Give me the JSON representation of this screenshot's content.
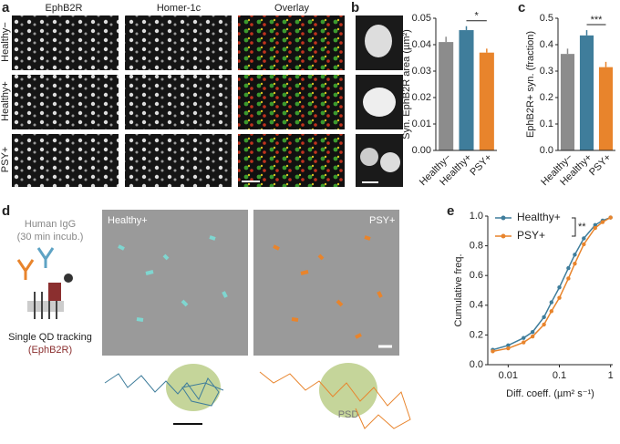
{
  "panel_labels": [
    "a",
    "b",
    "c",
    "d",
    "e"
  ],
  "panel_a": {
    "columns": [
      "EphB2R",
      "Homer-1c",
      "Overlay"
    ],
    "rows": [
      "Healthy−",
      "Healthy+",
      "PSY+"
    ]
  },
  "panel_d": {
    "antibody": "Human IgG",
    "incubation": "(30 min incub.)",
    "tracking": "Single QD tracking",
    "target": "(EphB2R)",
    "image_labels": [
      "Healthy+",
      "PSY+"
    ],
    "psd": "PSD"
  },
  "chart_data": [
    {
      "type": "bar",
      "ylabel": "Syn. EphB2R area (µm²)",
      "categories": [
        "Healthy−",
        "Healthy+",
        "PSY+"
      ],
      "values": [
        0.041,
        0.0455,
        0.037
      ],
      "errors": [
        0.002,
        0.0015,
        0.0015
      ],
      "colors": [
        "#8c8c8c",
        "#3f7d9b",
        "#e8842c"
      ],
      "ylim": [
        0,
        0.05
      ],
      "yticks": [
        {
          "value": 0,
          "label": "0.00"
        },
        0.01,
        0.02,
        0.03,
        0.04,
        0.05
      ],
      "significance": "*"
    },
    {
      "type": "bar",
      "ylabel": "EphB2R+ syn. (fraction)",
      "categories": [
        "Healthy−",
        "Healthy+",
        "PSY+"
      ],
      "values": [
        0.365,
        0.435,
        0.315
      ],
      "errors": [
        0.02,
        0.02,
        0.02
      ],
      "colors": [
        "#8c8c8c",
        "#3f7d9b",
        "#e8842c"
      ],
      "ylim": [
        0,
        0.5
      ],
      "yticks": [
        {
          "value": 0,
          "label": "0.0"
        },
        0.1,
        0.2,
        0.3,
        0.4,
        0.5
      ],
      "significance": "***"
    },
    {
      "type": "line",
      "xlabel": "Diff. coeff. (µm² s⁻¹)",
      "ylabel": "Cumulative freq.",
      "xscale": "log",
      "x": [
        0.005,
        0.01,
        0.02,
        0.03,
        0.05,
        0.07,
        0.1,
        0.15,
        0.2,
        0.3,
        0.5,
        0.7,
        1
      ],
      "series": [
        {
          "name": "Healthy+",
          "color": "#3f7d9b",
          "values": [
            0.1,
            0.13,
            0.18,
            0.22,
            0.32,
            0.42,
            0.52,
            0.65,
            0.74,
            0.85,
            0.94,
            0.97,
            0.99
          ]
        },
        {
          "name": "PSY+",
          "color": "#e8842c",
          "values": [
            0.09,
            0.11,
            0.15,
            0.19,
            0.27,
            0.36,
            0.45,
            0.58,
            0.68,
            0.81,
            0.92,
            0.96,
            0.99
          ]
        }
      ],
      "xlim": [
        0.004,
        1.1
      ],
      "xticks": [
        0.01,
        0.1,
        1
      ],
      "ylim": [
        0,
        1
      ],
      "yticks": [
        {
          "value": 0,
          "label": "0.0"
        },
        0.2,
        0.4,
        0.6,
        0.8,
        {
          "value": 1,
          "label": "1.0"
        }
      ],
      "significance": "**"
    }
  ]
}
